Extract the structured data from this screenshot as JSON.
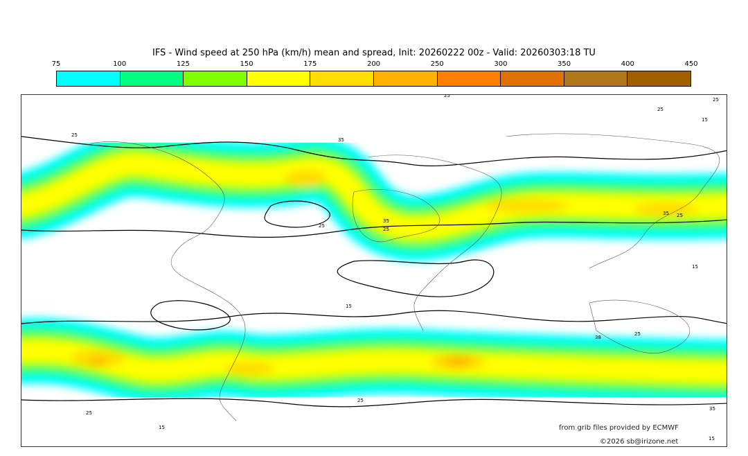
{
  "title": "IFS - Wind speed at 250 hPa (km/h) mean and spread, Init: 20260222 00z - Valid: 20260303:18 TU",
  "colorbar": {
    "ticks": [
      "75",
      "100",
      "125",
      "150",
      "175",
      "200",
      "250",
      "300",
      "350",
      "400",
      "450"
    ],
    "colors": [
      "#00ffff",
      "#00ff80",
      "#80ff00",
      "#ffff00",
      "#ffdd00",
      "#ffb000",
      "#ff8000",
      "#e07000",
      "#b07818",
      "#a06000"
    ]
  },
  "contour_labels": [
    "25",
    "25",
    "25",
    "15",
    "25",
    "35",
    "35",
    "25",
    "25",
    "35",
    "25",
    "15",
    "15",
    "38",
    "25",
    "25",
    "25",
    "15",
    "35",
    "15"
  ],
  "credits": {
    "source": "from grib files provided by ECMWF",
    "copyright": "©2026 sb@irizone.net"
  }
}
